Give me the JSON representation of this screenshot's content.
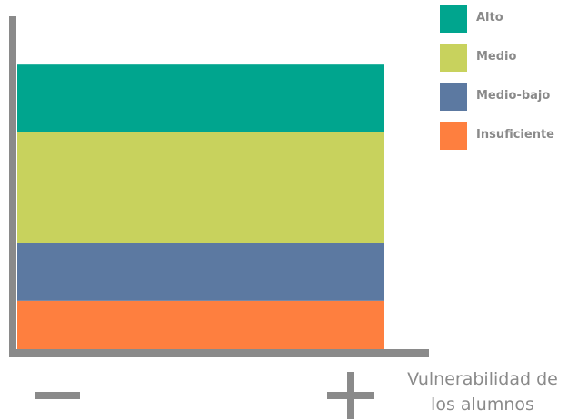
{
  "chart_data": {
    "type": "bar",
    "stacked": true,
    "categories": [
      ""
    ],
    "series": [
      {
        "name": "Insuficiente",
        "values": [
          5
        ],
        "color": "#fe7f3f"
      },
      {
        "name": "Medio-bajo",
        "values": [
          6
        ],
        "color": "#5c79a1"
      },
      {
        "name": "Medio",
        "values": [
          11.5
        ],
        "color": "#c8d25d"
      },
      {
        "name": "Alto",
        "values": [
          7
        ],
        "color": "#00a58e"
      }
    ],
    "legend": {
      "placement": "top-right",
      "order": [
        "Alto",
        "Medio",
        "Medio-bajo",
        "Insuficiente"
      ]
    },
    "ylim": [
      0,
      34.5
    ],
    "grid": false,
    "x_axis_extremes": {
      "low": "−",
      "high": "+"
    },
    "xlabel_lines": [
      "Vulnerabilidad de",
      "los alumnos"
    ],
    "axis_color": "#8a8a8a"
  }
}
